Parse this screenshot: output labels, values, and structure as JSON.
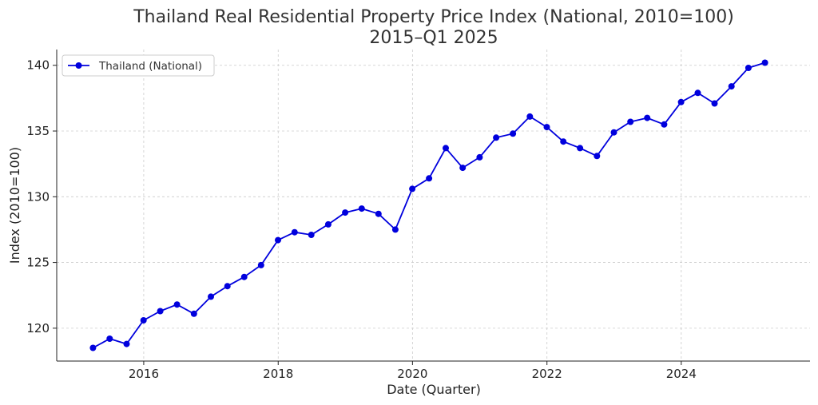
{
  "chart_data": {
    "type": "line",
    "title": "Thailand Real Residential Property Price Index (National, 2010=100)",
    "subtitle": "2015–Q1 2025",
    "xlabel": "Date (Quarter)",
    "ylabel": "Index (2010=100)",
    "xlim": [
      "2014-09-15",
      "2025-12-01"
    ],
    "ylim": [
      117.5,
      141.2
    ],
    "x_ticks": [
      "2016",
      "2018",
      "2020",
      "2022",
      "2024"
    ],
    "y_ticks": [
      120,
      125,
      130,
      135,
      140
    ],
    "grid": true,
    "legend_position": "top-left",
    "series": [
      {
        "name": "Thailand (National)",
        "color": "#0000dd",
        "marker": "circle",
        "x": [
          "2015-03-31",
          "2015-06-30",
          "2015-09-30",
          "2015-12-31",
          "2016-03-31",
          "2016-06-30",
          "2016-09-30",
          "2016-12-31",
          "2017-03-31",
          "2017-06-30",
          "2017-09-30",
          "2017-12-31",
          "2018-03-31",
          "2018-06-30",
          "2018-09-30",
          "2018-12-31",
          "2019-03-31",
          "2019-06-30",
          "2019-09-30",
          "2019-12-31",
          "2020-03-31",
          "2020-06-30",
          "2020-09-30",
          "2020-12-31",
          "2021-03-31",
          "2021-06-30",
          "2021-09-30",
          "2021-12-31",
          "2022-03-31",
          "2022-06-30",
          "2022-09-30",
          "2022-12-31",
          "2023-03-31",
          "2023-06-30",
          "2023-09-30",
          "2023-12-31",
          "2024-03-31",
          "2024-06-30",
          "2024-09-30",
          "2024-12-31",
          "2025-03-31"
        ],
        "values": [
          118.5,
          119.2,
          118.8,
          120.6,
          121.3,
          121.8,
          121.1,
          122.4,
          123.2,
          123.9,
          124.8,
          126.7,
          127.3,
          127.1,
          127.9,
          128.8,
          129.1,
          128.7,
          127.5,
          130.6,
          131.4,
          133.7,
          132.2,
          133.0,
          134.5,
          134.8,
          136.1,
          135.3,
          134.2,
          133.7,
          133.1,
          134.9,
          135.7,
          136.0,
          135.5,
          137.2,
          137.9,
          137.1,
          138.4,
          139.8,
          140.2
        ]
      }
    ]
  }
}
